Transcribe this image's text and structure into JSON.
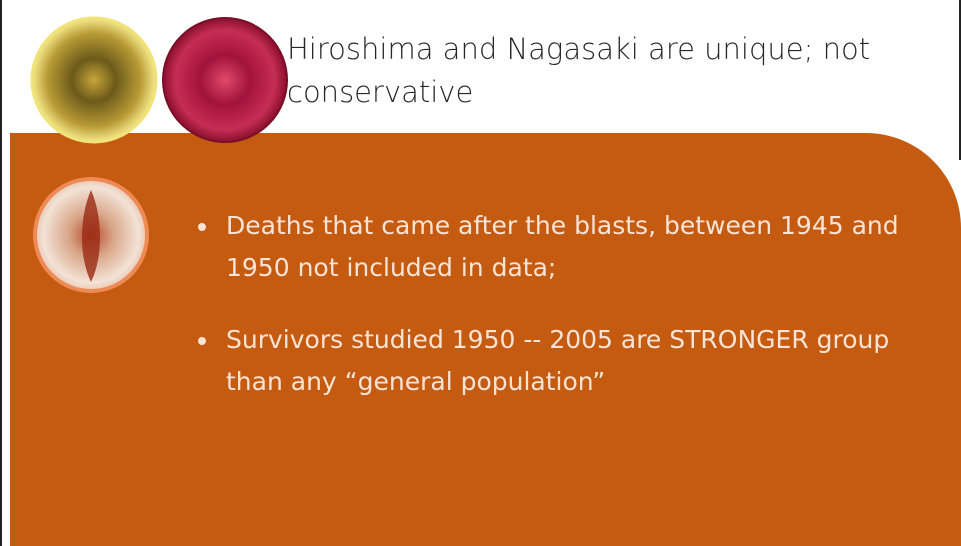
{
  "title": "Hiroshima and Nagasaki are unique; not conservative",
  "bullets": [
    "Deaths that came after the blasts, between 1945 and 1950 not included in data;",
    "Survivors studied 1950 -- 2005 are STRONGER group than any “general population”"
  ]
}
